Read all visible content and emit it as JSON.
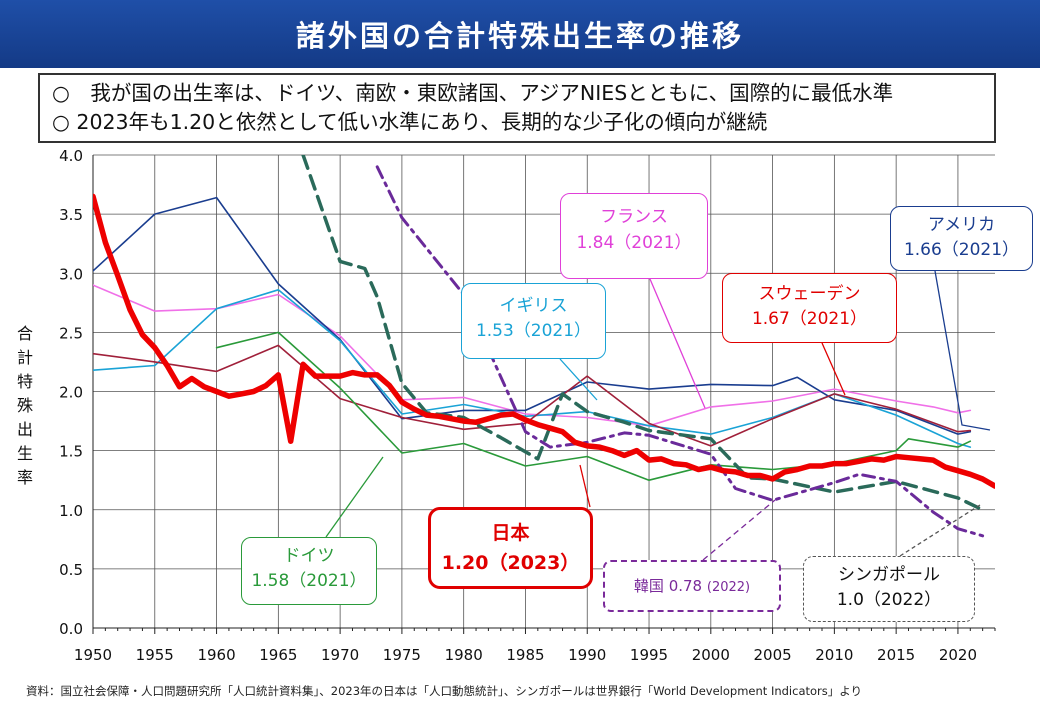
{
  "title": "諸外国の合計特殊出生率の推移",
  "summary": [
    "○　我が国の出生率は、ドイツ、南欧・東欧諸国、アジアNIESとともに、国際的に最低水準",
    "○ 2023年も1.20と依然として低い水準にあり、長期的な少子化の傾向が継続"
  ],
  "ylabel_chars": [
    "合",
    "計",
    "特",
    "殊",
    "出",
    "生",
    "率"
  ],
  "source": "資料：国立社会保障・人口問題研究所「人口統計資料集」、2023年の日本は「人口動態統計」、シンガポールは世界銀行「World Development Indicators」より",
  "callouts": {
    "france": {
      "name": "フランス",
      "value": "1.84（2021）",
      "color": "#e040d8"
    },
    "usa": {
      "name": "アメリカ",
      "value": "1.66（2021）",
      "color": "#1a3d8f"
    },
    "uk": {
      "name": "イギリス",
      "value": "1.53（2021）",
      "color": "#1aa3d6"
    },
    "sweden": {
      "name": "スウェーデン",
      "value": "1.67（2021）",
      "color": "#e00000"
    },
    "germany": {
      "name": "ドイツ",
      "value": "1.58（2021）",
      "color": "#2a9a3a"
    },
    "japan": {
      "name": "日本",
      "value": "1.20（2023）",
      "color": "#e00000"
    },
    "korea": {
      "name": "韓国",
      "value": "0.78",
      "year": "(2022)",
      "color": "#7a2a9a"
    },
    "singapore": {
      "name": "シンガポール",
      "value": "1.0（2022）",
      "color": "#111111"
    }
  },
  "chart_data": {
    "type": "line",
    "xlabel": "",
    "ylabel": "合計特殊出生率",
    "xlim": [
      1950,
      2023
    ],
    "ylim": [
      0.0,
      4.0
    ],
    "xticks": [
      1950,
      1955,
      1960,
      1965,
      1970,
      1975,
      1980,
      1985,
      1990,
      1995,
      2000,
      2005,
      2010,
      2015,
      2020
    ],
    "yticks": [
      "0.0",
      "0.5",
      "1.0",
      "1.5",
      "2.0",
      "2.5",
      "3.0",
      "3.5",
      "4.0"
    ],
    "grid": true,
    "series": [
      {
        "name": "日本",
        "color": "#ee0000",
        "style": "solid-thick",
        "x": [
          1950,
          1951,
          1952,
          1953,
          1954,
          1955,
          1956,
          1957,
          1958,
          1959,
          1960,
          1961,
          1962,
          1963,
          1964,
          1965,
          1966,
          1967,
          1968,
          1969,
          1970,
          1971,
          1972,
          1973,
          1974,
          1975,
          1976,
          1977,
          1978,
          1979,
          1980,
          1981,
          1982,
          1983,
          1984,
          1985,
          1986,
          1987,
          1988,
          1989,
          1990,
          1991,
          1992,
          1993,
          1994,
          1995,
          1996,
          1997,
          1998,
          1999,
          2000,
          2001,
          2002,
          2003,
          2004,
          2005,
          2006,
          2007,
          2008,
          2009,
          2010,
          2011,
          2012,
          2013,
          2014,
          2015,
          2016,
          2017,
          2018,
          2019,
          2020,
          2021,
          2022,
          2023
        ],
        "y": [
          3.65,
          3.26,
          2.98,
          2.69,
          2.48,
          2.37,
          2.22,
          2.04,
          2.11,
          2.04,
          2.0,
          1.96,
          1.98,
          2.0,
          2.05,
          2.14,
          1.58,
          2.23,
          2.13,
          2.13,
          2.13,
          2.16,
          2.14,
          2.14,
          2.05,
          1.91,
          1.85,
          1.8,
          1.79,
          1.77,
          1.75,
          1.74,
          1.77,
          1.8,
          1.81,
          1.76,
          1.72,
          1.69,
          1.66,
          1.57,
          1.54,
          1.53,
          1.5,
          1.46,
          1.5,
          1.42,
          1.43,
          1.39,
          1.38,
          1.34,
          1.36,
          1.33,
          1.32,
          1.29,
          1.29,
          1.26,
          1.32,
          1.34,
          1.37,
          1.37,
          1.39,
          1.39,
          1.41,
          1.43,
          1.42,
          1.45,
          1.44,
          1.43,
          1.42,
          1.36,
          1.33,
          1.3,
          1.26,
          1.2
        ]
      },
      {
        "name": "フランス",
        "color": "#f070e8",
        "style": "solid",
        "x": [
          1950,
          1955,
          1960,
          1965,
          1970,
          1975,
          1980,
          1985,
          1990,
          1995,
          2000,
          2005,
          2010,
          2015,
          2018,
          2020,
          2021
        ],
        "y": [
          2.9,
          2.68,
          2.7,
          2.82,
          2.47,
          1.93,
          1.95,
          1.81,
          1.78,
          1.71,
          1.87,
          1.92,
          2.02,
          1.92,
          1.87,
          1.82,
          1.84
        ]
      },
      {
        "name": "アメリカ",
        "color": "#1a3d8f",
        "style": "solid",
        "x": [
          1950,
          1955,
          1960,
          1965,
          1970,
          1975,
          1980,
          1985,
          1990,
          1995,
          2000,
          2005,
          2007,
          2010,
          2015,
          2020,
          2021
        ],
        "y": [
          3.02,
          3.5,
          3.64,
          2.91,
          2.44,
          1.77,
          1.84,
          1.84,
          2.08,
          2.02,
          2.06,
          2.05,
          2.12,
          1.93,
          1.84,
          1.64,
          1.66
        ]
      },
      {
        "name": "イギリス",
        "color": "#1aa3d6",
        "style": "solid",
        "x": [
          1950,
          1955,
          1960,
          1965,
          1970,
          1975,
          1980,
          1985,
          1990,
          1995,
          2000,
          2005,
          2010,
          2015,
          2020,
          2021
        ],
        "y": [
          2.18,
          2.22,
          2.7,
          2.86,
          2.43,
          1.81,
          1.89,
          1.79,
          1.83,
          1.71,
          1.64,
          1.78,
          1.98,
          1.8,
          1.56,
          1.53
        ]
      },
      {
        "name": "スウェーデン",
        "color": "#a0203a",
        "style": "solid",
        "x": [
          1950,
          1955,
          1960,
          1965,
          1970,
          1975,
          1980,
          1985,
          1990,
          1995,
          2000,
          2005,
          2010,
          2015,
          2020,
          2021
        ],
        "y": [
          2.32,
          2.25,
          2.17,
          2.39,
          1.94,
          1.78,
          1.68,
          1.73,
          2.13,
          1.73,
          1.54,
          1.77,
          1.98,
          1.85,
          1.66,
          1.67
        ]
      },
      {
        "name": "ドイツ",
        "color": "#2a9a3a",
        "style": "solid",
        "x": [
          1960,
          1965,
          1970,
          1975,
          1980,
          1985,
          1990,
          1995,
          2000,
          2005,
          2010,
          2015,
          2016,
          2020,
          2021
        ],
        "y": [
          2.37,
          2.5,
          2.03,
          1.48,
          1.56,
          1.37,
          1.45,
          1.25,
          1.38,
          1.34,
          1.39,
          1.5,
          1.6,
          1.53,
          1.58
        ]
      },
      {
        "name": "シンガポール",
        "color": "#2a6a5a",
        "style": "dashed",
        "x": [
          1967,
          1970,
          1972,
          1973,
          1975,
          1977,
          1980,
          1983,
          1986,
          1988,
          1990,
          1993,
          1995,
          2000,
          2003,
          2005,
          2010,
          2015,
          2020,
          2022
        ],
        "y": [
          4.0,
          3.1,
          3.04,
          2.8,
          2.07,
          1.82,
          1.78,
          1.61,
          1.43,
          1.98,
          1.83,
          1.74,
          1.67,
          1.6,
          1.27,
          1.26,
          1.15,
          1.24,
          1.1,
          1.0
        ]
      },
      {
        "name": "韓国",
        "color": "#6a2a9a",
        "style": "dashdot",
        "x": [
          1973,
          1975,
          1980,
          1985,
          1987,
          1990,
          1993,
          1995,
          2000,
          2002,
          2005,
          2010,
          2012,
          2015,
          2018,
          2020,
          2022
        ],
        "y": [
          3.9,
          3.47,
          2.82,
          1.66,
          1.53,
          1.57,
          1.65,
          1.63,
          1.47,
          1.18,
          1.08,
          1.23,
          1.3,
          1.24,
          0.98,
          0.84,
          0.78
        ]
      }
    ]
  }
}
